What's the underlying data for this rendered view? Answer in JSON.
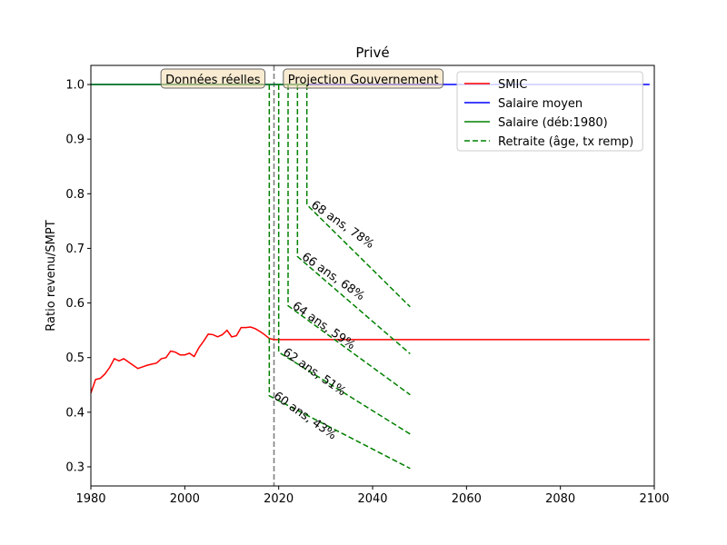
{
  "chart_data": {
    "type": "line",
    "title": "Privé",
    "xlabel": "",
    "ylabel": "Ratio revenu/SMPT",
    "xlim": [
      1980,
      2100
    ],
    "ylim": [
      0.265,
      1.035
    ],
    "xticks": [
      1980,
      2000,
      2020,
      2040,
      2060,
      2080,
      2100
    ],
    "yticks": [
      0.3,
      0.4,
      0.5,
      0.6,
      0.7,
      0.8,
      0.9,
      1.0
    ],
    "grid": false,
    "legend": {
      "placement": "top-right",
      "entries": [
        {
          "label": "SMIC",
          "color": "#ff0000",
          "style": "solid"
        },
        {
          "label": "Salaire moyen",
          "color": "#0000ff",
          "style": "solid"
        },
        {
          "label": "Salaire (déb:1980)",
          "color": "#008000",
          "style": "solid"
        },
        {
          "label": "Retraite (âge, tx remp)",
          "color": "#008000",
          "style": "dashed"
        }
      ]
    },
    "separator": {
      "x": 2019,
      "color": "#808080",
      "style": "dashed"
    },
    "boxes": [
      {
        "text": "Données réelles",
        "x": 2006
      },
      {
        "text": "Projection Gouvernement",
        "x": 2038
      }
    ],
    "series": [
      {
        "name": "SMIC",
        "color": "#ff0000",
        "style": "solid",
        "x": [
          1980,
          1981,
          1982,
          1983,
          1984,
          1985,
          1986,
          1987,
          1988,
          1989,
          1990,
          1991,
          1992,
          1993,
          1994,
          1995,
          1996,
          1997,
          1998,
          1999,
          2000,
          2001,
          2002,
          2003,
          2004,
          2005,
          2006,
          2007,
          2008,
          2009,
          2010,
          2011,
          2012,
          2013,
          2014,
          2015,
          2016,
          2017,
          2018,
          2019,
          2030,
          2099
        ],
        "y": [
          0.435,
          0.46,
          0.462,
          0.47,
          0.482,
          0.498,
          0.494,
          0.498,
          0.492,
          0.486,
          0.48,
          0.483,
          0.486,
          0.488,
          0.49,
          0.498,
          0.5,
          0.512,
          0.51,
          0.505,
          0.505,
          0.508,
          0.502,
          0.518,
          0.53,
          0.543,
          0.542,
          0.538,
          0.542,
          0.55,
          0.538,
          0.54,
          0.555,
          0.555,
          0.556,
          0.553,
          0.548,
          0.542,
          0.535,
          0.533,
          0.533,
          0.533
        ]
      },
      {
        "name": "Salaire moyen",
        "color": "#0000ff",
        "style": "solid",
        "x": [
          1980,
          2099
        ],
        "y": [
          1.0,
          1.0
        ]
      },
      {
        "name": "Salaire (déb:1980)",
        "color": "#008000",
        "style": "solid",
        "x": [
          1980,
          2026
        ],
        "y": [
          1.0,
          1.0
        ]
      }
    ],
    "retirement": [
      {
        "label": "60 ans, 43%",
        "x_retire": 2018,
        "x_end": 2048,
        "y_start": 0.43,
        "y_end": 0.297
      },
      {
        "label": "62 ans, 51%",
        "x_retire": 2020,
        "x_end": 2048,
        "y_start": 0.51,
        "y_end": 0.36
      },
      {
        "label": "64 ans, 59%",
        "x_retire": 2022,
        "x_end": 2048,
        "y_start": 0.595,
        "y_end": 0.432
      },
      {
        "label": "66 ans, 68%",
        "x_retire": 2024,
        "x_end": 2048,
        "y_start": 0.685,
        "y_end": 0.507
      },
      {
        "label": "68 ans, 78%",
        "x_retire": 2026,
        "x_end": 2048,
        "y_start": 0.78,
        "y_end": 0.593
      }
    ]
  }
}
